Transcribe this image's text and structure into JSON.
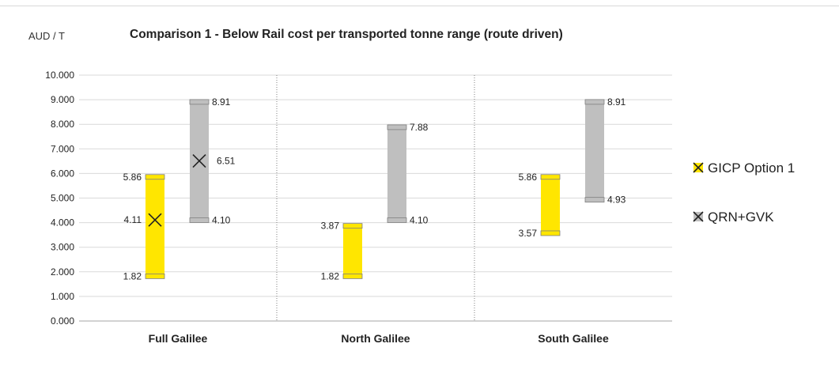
{
  "chart_data": {
    "type": "bar",
    "subtype": "floating-range",
    "title": "Comparison 1  - Below Rail cost per transported tonne range (route driven)",
    "unit_label": "AUD / T",
    "ylim": [
      0,
      10
    ],
    "yticks": [
      "0.000",
      "1.000",
      "2.000",
      "3.000",
      "4.000",
      "5.000",
      "6.000",
      "7.000",
      "8.000",
      "9.000",
      "10.000"
    ],
    "grid": true,
    "legend_position": "right",
    "categories": [
      "Full Galilee",
      "North Galilee",
      "South Galilee"
    ],
    "series": [
      {
        "name": "GICP Option 1",
        "color": "#ffe600",
        "marker_icon": "x-cross-icon",
        "ranges": [
          {
            "low": 1.82,
            "high": 5.86,
            "mid": 4.11,
            "low_label": "1.82",
            "high_label": "5.86",
            "mid_label": "4.11"
          },
          {
            "low": 1.82,
            "high": 3.87,
            "low_label": "1.82",
            "high_label": "3.87"
          },
          {
            "low": 3.57,
            "high": 5.86,
            "low_label": "3.57",
            "high_label": "5.86"
          }
        ]
      },
      {
        "name": "QRN+GVK",
        "color": "#bfbfbf",
        "marker_icon": "x-cross-icon",
        "ranges": [
          {
            "low": 4.1,
            "high": 8.91,
            "mid": 6.51,
            "low_label": "4.10",
            "high_label": "8.91",
            "mid_label": "6.51"
          },
          {
            "low": 4.1,
            "high": 7.88,
            "low_label": "4.10",
            "high_label": "7.88"
          },
          {
            "low": 4.93,
            "high": 8.91,
            "low_label": "4.93",
            "high_label": "8.91"
          }
        ]
      }
    ]
  }
}
